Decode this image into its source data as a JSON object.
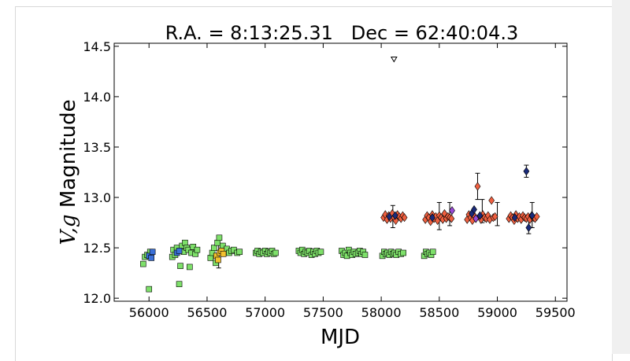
{
  "chart_data": {
    "type": "scatter",
    "title": "R.A. = 8:13:25.31   Dec = 62:40:04.3",
    "xlabel": "MJD",
    "ylabel_main": "V,g",
    "ylabel_rest": " Magnitude",
    "xlim": [
      55700,
      59600
    ],
    "ylim": [
      14.53,
      11.97
    ],
    "y_inverted": true,
    "grid": false,
    "x_ticks": [
      56000,
      56500,
      57000,
      57500,
      58000,
      58500,
      59000,
      59500
    ],
    "y_ticks": [
      12.0,
      12.5,
      13.0,
      13.5,
      14.0,
      14.5
    ],
    "y_tick_labels": [
      "12.0",
      "12.5",
      "13.0",
      "13.5",
      "14.0",
      "14.5"
    ],
    "series": [
      {
        "id": "V-band green",
        "marker": "square",
        "color": "#7ee06a",
        "points": [
          [
            55950,
            12.34
          ],
          [
            55965,
            12.41
          ],
          [
            55985,
            12.43
          ],
          [
            56000,
            12.09
          ],
          [
            56010,
            12.46
          ],
          [
            56200,
            12.41
          ],
          [
            56210,
            12.48
          ],
          [
            56225,
            12.43
          ],
          [
            56240,
            12.5
          ],
          [
            56260,
            12.14
          ],
          [
            56270,
            12.32
          ],
          [
            56285,
            12.52
          ],
          [
            56300,
            12.46
          ],
          [
            56310,
            12.55
          ],
          [
            56325,
            12.5
          ],
          [
            56340,
            12.48
          ],
          [
            56350,
            12.31
          ],
          [
            56365,
            12.45
          ],
          [
            56380,
            12.51
          ],
          [
            56400,
            12.44
          ],
          [
            56415,
            12.48
          ],
          [
            56530,
            12.4
          ],
          [
            56545,
            12.45
          ],
          [
            56560,
            12.5
          ],
          [
            56575,
            12.35
          ],
          [
            56590,
            12.55
          ],
          [
            56605,
            12.6
          ],
          [
            56620,
            12.45
          ],
          [
            56635,
            12.52
          ],
          [
            56650,
            12.47
          ],
          [
            56670,
            12.49
          ],
          [
            56690,
            12.45
          ],
          [
            56710,
            12.47
          ],
          [
            56730,
            12.48
          ],
          [
            56760,
            12.45
          ],
          [
            56780,
            12.46
          ],
          [
            56920,
            12.45
          ],
          [
            56935,
            12.47
          ],
          [
            56950,
            12.44
          ],
          [
            56965,
            12.46
          ],
          [
            56980,
            12.45
          ],
          [
            57000,
            12.47
          ],
          [
            57015,
            12.44
          ],
          [
            57030,
            12.46
          ],
          [
            57045,
            12.45
          ],
          [
            57060,
            12.47
          ],
          [
            57075,
            12.44
          ],
          [
            57090,
            12.45
          ],
          [
            57290,
            12.47
          ],
          [
            57305,
            12.45
          ],
          [
            57320,
            12.48
          ],
          [
            57335,
            12.44
          ],
          [
            57350,
            12.46
          ],
          [
            57365,
            12.45
          ],
          [
            57380,
            12.47
          ],
          [
            57400,
            12.43
          ],
          [
            57415,
            12.46
          ],
          [
            57430,
            12.44
          ],
          [
            57445,
            12.47
          ],
          [
            57460,
            12.45
          ],
          [
            57480,
            12.46
          ],
          [
            57660,
            12.47
          ],
          [
            57675,
            12.43
          ],
          [
            57690,
            12.45
          ],
          [
            57705,
            12.42
          ],
          [
            57720,
            12.48
          ],
          [
            57735,
            12.45
          ],
          [
            57750,
            12.43
          ],
          [
            57765,
            12.46
          ],
          [
            57780,
            12.44
          ],
          [
            57800,
            12.45
          ],
          [
            57815,
            12.47
          ],
          [
            57830,
            12.44
          ],
          [
            57845,
            12.46
          ],
          [
            57860,
            12.43
          ],
          [
            58010,
            12.42
          ],
          [
            58025,
            12.46
          ],
          [
            58040,
            12.44
          ],
          [
            58055,
            12.45
          ],
          [
            58070,
            12.43
          ],
          [
            58085,
            12.46
          ],
          [
            58100,
            12.44
          ],
          [
            58115,
            12.45
          ],
          [
            58130,
            12.43
          ],
          [
            58150,
            12.46
          ],
          [
            58170,
            12.44
          ],
          [
            58190,
            12.45
          ],
          [
            58370,
            12.42
          ],
          [
            58385,
            12.46
          ],
          [
            58400,
            12.44
          ],
          [
            58415,
            12.45
          ],
          [
            58430,
            12.43
          ],
          [
            58445,
            12.46
          ]
        ]
      },
      {
        "id": "V-band blue",
        "marker": "square",
        "color": "#3a6fd8",
        "points": [
          [
            56000,
            12.42
          ],
          [
            56020,
            12.4
          ],
          [
            56030,
            12.46
          ],
          [
            56240,
            12.45
          ],
          [
            56260,
            12.47
          ]
        ]
      },
      {
        "id": "V-band yellow",
        "marker": "square",
        "color": "#f2c12e",
        "points": [
          [
            56580,
            12.42
          ],
          [
            56595,
            12.38
          ],
          [
            56610,
            12.45
          ],
          [
            56625,
            12.47
          ],
          [
            56640,
            12.44
          ]
        ]
      },
      {
        "id": "g-band orange",
        "marker": "diamond",
        "color": "#f06040",
        "points": [
          [
            58020,
            12.8
          ],
          [
            58035,
            12.83
          ],
          [
            58050,
            12.78
          ],
          [
            58065,
            12.82
          ],
          [
            58080,
            12.79
          ],
          [
            58095,
            12.84
          ],
          [
            58110,
            12.8
          ],
          [
            58125,
            12.77
          ],
          [
            58140,
            12.83
          ],
          [
            58155,
            12.81
          ],
          [
            58170,
            12.79
          ],
          [
            58185,
            12.82
          ],
          [
            58200,
            12.8
          ],
          [
            58380,
            12.78
          ],
          [
            58395,
            12.82
          ],
          [
            58410,
            12.8
          ],
          [
            58425,
            12.76
          ],
          [
            58440,
            12.83
          ],
          [
            58455,
            12.79
          ],
          [
            58470,
            12.81
          ],
          [
            58485,
            12.77
          ],
          [
            58500,
            12.82
          ],
          [
            58515,
            12.8
          ],
          [
            58530,
            12.78
          ],
          [
            58545,
            12.84
          ],
          [
            58560,
            12.79
          ],
          [
            58575,
            12.81
          ],
          [
            58590,
            12.8
          ],
          [
            58605,
            12.79
          ],
          [
            58740,
            12.78
          ],
          [
            58755,
            12.83
          ],
          [
            58770,
            12.8
          ],
          [
            58785,
            12.77
          ],
          [
            58800,
            12.82
          ],
          [
            58815,
            12.79
          ],
          [
            58830,
            13.11
          ],
          [
            58845,
            12.81
          ],
          [
            58860,
            12.78
          ],
          [
            58875,
            12.83
          ],
          [
            58890,
            12.8
          ],
          [
            58905,
            12.79
          ],
          [
            58920,
            12.82
          ],
          [
            58935,
            12.78
          ],
          [
            58950,
            12.97
          ],
          [
            58965,
            12.8
          ],
          [
            58980,
            12.81
          ],
          [
            59100,
            12.79
          ],
          [
            59115,
            12.82
          ],
          [
            59130,
            12.8
          ],
          [
            59145,
            12.77
          ],
          [
            59160,
            12.83
          ],
          [
            59175,
            12.79
          ],
          [
            59190,
            12.81
          ],
          [
            59205,
            12.78
          ],
          [
            59220,
            12.82
          ],
          [
            59235,
            12.8
          ],
          [
            59250,
            12.79
          ],
          [
            59265,
            12.81
          ],
          [
            59280,
            12.78
          ],
          [
            59295,
            12.82
          ],
          [
            59310,
            12.8
          ],
          [
            59325,
            12.79
          ],
          [
            59340,
            12.81
          ]
        ]
      },
      {
        "id": "g-band navy",
        "marker": "diamond",
        "color": "#1a2a7a",
        "points": [
          [
            58070,
            12.81
          ],
          [
            58120,
            12.82
          ],
          [
            58440,
            12.8
          ],
          [
            58780,
            12.84
          ],
          [
            58800,
            12.88
          ],
          [
            58850,
            12.82
          ],
          [
            59150,
            12.8
          ],
          [
            59250,
            13.26
          ],
          [
            59270,
            12.7
          ],
          [
            59300,
            12.82
          ]
        ]
      },
      {
        "id": "g-band purple",
        "marker": "diamond",
        "color": "#9a4ad8",
        "points": [
          [
            58610,
            12.87
          ],
          [
            58815,
            12.79
          ]
        ]
      },
      {
        "id": "upper limit",
        "marker": "triangle-down",
        "color": "#ffffff",
        "points": [
          [
            58110,
            14.37
          ]
        ]
      }
    ],
    "error_bars": [
      [
        56600,
        12.3,
        12.62
      ],
      [
        58100,
        12.7,
        12.92
      ],
      [
        58500,
        12.68,
        12.95
      ],
      [
        58590,
        12.72,
        12.95
      ],
      [
        58830,
        12.98,
        13.24
      ],
      [
        58870,
        12.75,
        12.98
      ],
      [
        59000,
        12.72,
        12.95
      ],
      [
        59250,
        13.2,
        13.32
      ],
      [
        59270,
        12.64,
        12.78
      ],
      [
        59300,
        12.7,
        12.95
      ]
    ]
  }
}
